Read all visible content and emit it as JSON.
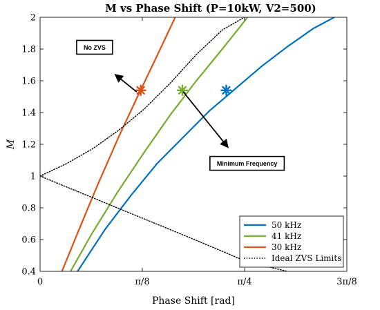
{
  "chart_data": {
    "type": "line",
    "title": "M vs Phase Shift (P=10kW, V2=500)",
    "xlabel": "Phase Shift [rad]",
    "ylabel": "M",
    "xlim": [
      0,
      1.1781
    ],
    "ylim": [
      0.4,
      2.0
    ],
    "xticks": [
      {
        "value": 0,
        "label": "0"
      },
      {
        "value": 0.3927,
        "label": "π/8"
      },
      {
        "value": 0.7854,
        "label": "π/4"
      },
      {
        "value": 1.1781,
        "label": "3π/8"
      }
    ],
    "yticks": [
      {
        "value": 0.4,
        "label": "0.4"
      },
      {
        "value": 0.6,
        "label": "0.6"
      },
      {
        "value": 0.8,
        "label": "0.8"
      },
      {
        "value": 1.0,
        "label": "1"
      },
      {
        "value": 1.2,
        "label": "1.2"
      },
      {
        "value": 1.4,
        "label": "1.4"
      },
      {
        "value": 1.6,
        "label": "1.6"
      },
      {
        "value": 1.8,
        "label": "1.8"
      },
      {
        "value": 2.0,
        "label": "2"
      }
    ],
    "grid": false,
    "legend_position": "bottom-right",
    "series": [
      {
        "name": "50 kHz",
        "color": "#0072BD",
        "style": "solid",
        "points": [
          [
            0.144,
            0.4
          ],
          [
            0.25,
            0.665
          ],
          [
            0.35,
            0.88
          ],
          [
            0.45,
            1.08
          ],
          [
            0.55,
            1.245
          ],
          [
            0.65,
            1.41
          ],
          [
            0.75,
            1.55
          ],
          [
            0.85,
            1.69
          ],
          [
            0.95,
            1.815
          ],
          [
            1.05,
            1.93
          ],
          [
            1.13,
            2.0
          ]
        ]
      },
      {
        "name": "41 kHz",
        "color": "#77AC30",
        "style": "solid",
        "points": [
          [
            0.117,
            0.4
          ],
          [
            0.2,
            0.64
          ],
          [
            0.3,
            0.905
          ],
          [
            0.4,
            1.15
          ],
          [
            0.5,
            1.385
          ],
          [
            0.6,
            1.6
          ],
          [
            0.7,
            1.8
          ],
          [
            0.797,
            2.0
          ]
        ]
      },
      {
        "name": "30 kHz",
        "color": "#D95319",
        "style": "solid",
        "points": [
          [
            0.084,
            0.4
          ],
          [
            0.15,
            0.665
          ],
          [
            0.22,
            0.94
          ],
          [
            0.3,
            1.24
          ],
          [
            0.38,
            1.52
          ],
          [
            0.45,
            1.76
          ],
          [
            0.519,
            2.0
          ]
        ]
      },
      {
        "name": "Ideal ZVS Limits",
        "color": "#000000",
        "style": "dotted",
        "points": [
          [
            0,
            1.0
          ],
          [
            0.1,
            1.077
          ],
          [
            0.2,
            1.17
          ],
          [
            0.3,
            1.286
          ],
          [
            0.4,
            1.422
          ],
          [
            0.5,
            1.585
          ],
          [
            0.6,
            1.765
          ],
          [
            0.7,
            1.92
          ],
          [
            0.785,
            2.0
          ]
        ]
      },
      {
        "name": "",
        "color": "#000000",
        "style": "dotted",
        "points": [
          [
            0,
            1.0
          ],
          [
            0.2,
            0.865
          ],
          [
            0.4,
            0.73
          ],
          [
            0.6,
            0.595
          ],
          [
            0.8,
            0.457
          ],
          [
            0.95,
            0.4
          ]
        ]
      }
    ],
    "markers": [
      {
        "series": "30 kHz",
        "x": 0.3865,
        "y": 1.54,
        "color": "#D95319"
      },
      {
        "series": "41 kHz",
        "x": 0.5465,
        "y": 1.54,
        "color": "#77AC30"
      },
      {
        "series": "50 kHz",
        "x": 0.7149,
        "y": 1.54,
        "color": "#0072BD"
      }
    ],
    "annotations": [
      {
        "text": "No ZVS",
        "box_at": [
          0.2095,
          1.811
        ],
        "arrow_to": [
          0.288,
          1.64
        ],
        "arrow_from": [
          0.371,
          1.53
        ]
      },
      {
        "text": "Minimum Frequency",
        "box_at": [
          0.795,
          1.08
        ],
        "arrow_from": [
          0.55,
          1.53
        ],
        "arrow_to": [
          0.722,
          1.18
        ]
      }
    ]
  }
}
